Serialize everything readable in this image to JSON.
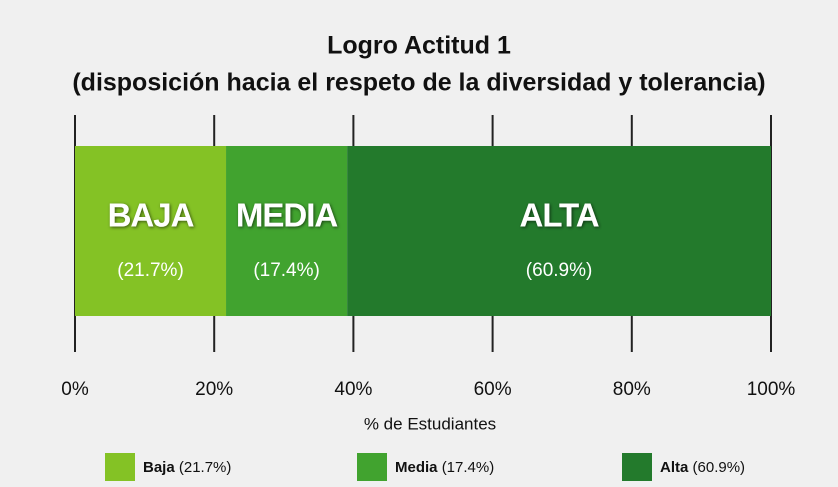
{
  "chart_data": {
    "type": "stacked_barh",
    "title": "Logro Actitud 1",
    "subtitle": "(disposición hacia el respeto de la diversidad y tolerancia)",
    "xlabel": "% de Estudiantes",
    "series": [
      {
        "name": "Baja",
        "bar_label": "BAJA",
        "color": "#84c225",
        "values": [
          21.7
        ],
        "value_labels": [
          "(21.7%)"
        ]
      },
      {
        "name": "Media",
        "bar_label": "MEDIA",
        "color": "#41a32f",
        "values": [
          17.4
        ],
        "value_labels": [
          "(17.4%)"
        ]
      },
      {
        "name": "Alta",
        "bar_label": "ALTA",
        "color": "#237a2c",
        "values": [
          60.9
        ],
        "value_labels": [
          "(60.9%)"
        ]
      }
    ],
    "xlim": [
      0,
      100
    ],
    "xticks": [
      {
        "value": 0,
        "label": "0%"
      },
      {
        "value": 20,
        "label": "20%"
      },
      {
        "value": 40,
        "label": "40%"
      },
      {
        "value": 60,
        "label": "60%"
      },
      {
        "value": 80,
        "label": "80%"
      },
      {
        "value": 100,
        "label": "100%"
      }
    ],
    "grid": true,
    "legend": "bottom"
  }
}
